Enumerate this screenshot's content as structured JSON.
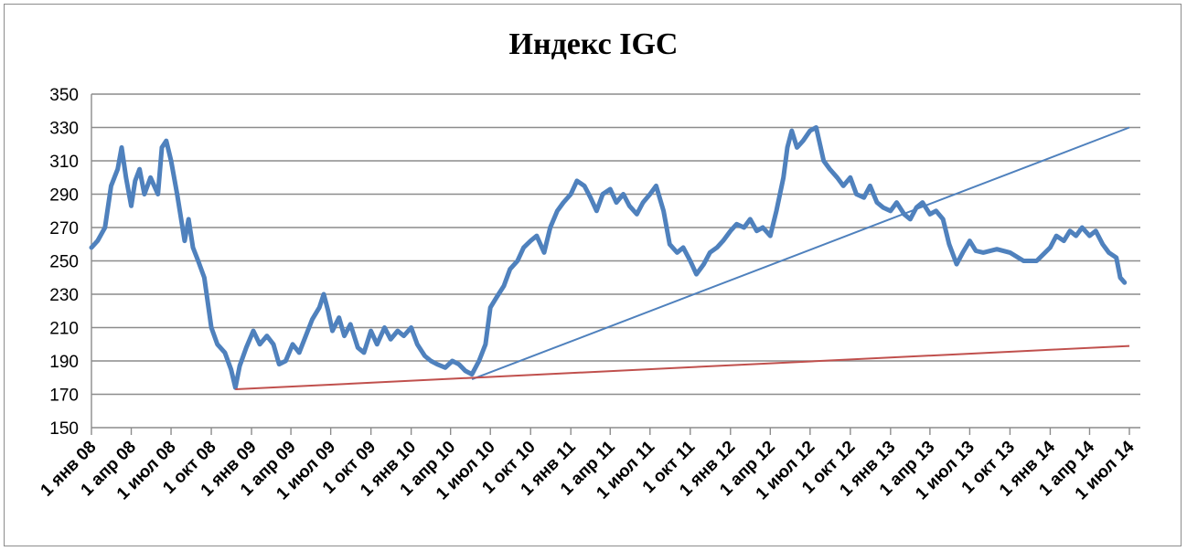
{
  "chart_data": {
    "type": "line",
    "title": "Индекс IGC",
    "xlabel": "",
    "ylabel": "",
    "ylim": [
      150,
      350
    ],
    "yticks": [
      150,
      170,
      190,
      210,
      230,
      250,
      270,
      290,
      310,
      330,
      350
    ],
    "grid": true,
    "legend": "none",
    "xticks": [
      "1 янв 08",
      "1 апр 08",
      "1 июл 08",
      "1 окт 08",
      "1 янв 09",
      "1 апр 09",
      "1 июл 09",
      "1 окт 09",
      "1 янв 10",
      "1 апр 10",
      "1 июл 10",
      "1 окт 10",
      "1 янв 11",
      "1 апр 11",
      "1 июл 11",
      "1 окт 11",
      "1 янв 12",
      "1 апр 12",
      "1 июл 12",
      "1 окт 12",
      "1 янв 13",
      "1 апр 13",
      "1 июл 13",
      "1 окт 13",
      "1 янв 14",
      "1 апр 14",
      "1 июл 14"
    ],
    "series": [
      {
        "type": "line",
        "color": "#4f81bd",
        "points": [
          [
            "2008-01-01",
            258
          ],
          [
            "2008-01-15",
            262
          ],
          [
            "2008-02-01",
            270
          ],
          [
            "2008-02-15",
            295
          ],
          [
            "2008-03-01",
            305
          ],
          [
            "2008-03-10",
            318
          ],
          [
            "2008-03-20",
            300
          ],
          [
            "2008-04-01",
            283
          ],
          [
            "2008-04-10",
            298
          ],
          [
            "2008-04-20",
            305
          ],
          [
            "2008-05-01",
            290
          ],
          [
            "2008-05-15",
            300
          ],
          [
            "2008-06-01",
            290
          ],
          [
            "2008-06-10",
            318
          ],
          [
            "2008-06-20",
            322
          ],
          [
            "2008-07-01",
            310
          ],
          [
            "2008-07-15",
            290
          ],
          [
            "2008-08-01",
            262
          ],
          [
            "2008-08-10",
            275
          ],
          [
            "2008-08-20",
            258
          ],
          [
            "2008-09-01",
            250
          ],
          [
            "2008-09-15",
            240
          ],
          [
            "2008-10-01",
            210
          ],
          [
            "2008-10-15",
            200
          ],
          [
            "2008-11-01",
            195
          ],
          [
            "2008-11-15",
            185
          ],
          [
            "2008-11-25",
            174
          ],
          [
            "2008-12-05",
            187
          ],
          [
            "2008-12-20",
            198
          ],
          [
            "2009-01-05",
            208
          ],
          [
            "2009-01-20",
            200
          ],
          [
            "2009-02-05",
            205
          ],
          [
            "2009-02-20",
            200
          ],
          [
            "2009-03-05",
            188
          ],
          [
            "2009-03-20",
            190
          ],
          [
            "2009-04-05",
            200
          ],
          [
            "2009-04-20",
            195
          ],
          [
            "2009-05-05",
            205
          ],
          [
            "2009-05-20",
            215
          ],
          [
            "2009-06-05",
            222
          ],
          [
            "2009-06-15",
            230
          ],
          [
            "2009-06-25",
            220
          ],
          [
            "2009-07-05",
            208
          ],
          [
            "2009-07-20",
            216
          ],
          [
            "2009-08-01",
            205
          ],
          [
            "2009-08-15",
            212
          ],
          [
            "2009-09-01",
            198
          ],
          [
            "2009-09-15",
            195
          ],
          [
            "2009-10-01",
            208
          ],
          [
            "2009-10-15",
            200
          ],
          [
            "2009-11-01",
            210
          ],
          [
            "2009-11-15",
            203
          ],
          [
            "2009-12-01",
            208
          ],
          [
            "2009-12-15",
            205
          ],
          [
            "2010-01-01",
            210
          ],
          [
            "2010-01-15",
            200
          ],
          [
            "2010-02-01",
            193
          ],
          [
            "2010-02-15",
            190
          ],
          [
            "2010-03-01",
            188
          ],
          [
            "2010-03-20",
            186
          ],
          [
            "2010-04-05",
            190
          ],
          [
            "2010-04-20",
            188
          ],
          [
            "2010-05-05",
            184
          ],
          [
            "2010-05-20",
            182
          ],
          [
            "2010-06-05",
            190
          ],
          [
            "2010-06-20",
            200
          ],
          [
            "2010-07-01",
            222
          ],
          [
            "2010-07-15",
            228
          ],
          [
            "2010-08-01",
            235
          ],
          [
            "2010-08-15",
            245
          ],
          [
            "2010-09-01",
            250
          ],
          [
            "2010-09-15",
            258
          ],
          [
            "2010-10-01",
            262
          ],
          [
            "2010-10-15",
            265
          ],
          [
            "2010-11-01",
            255
          ],
          [
            "2010-11-15",
            270
          ],
          [
            "2010-12-01",
            280
          ],
          [
            "2010-12-15",
            285
          ],
          [
            "2011-01-01",
            290
          ],
          [
            "2011-01-15",
            298
          ],
          [
            "2011-02-01",
            295
          ],
          [
            "2011-02-15",
            288
          ],
          [
            "2011-03-01",
            280
          ],
          [
            "2011-03-15",
            290
          ],
          [
            "2011-04-01",
            293
          ],
          [
            "2011-04-15",
            285
          ],
          [
            "2011-05-01",
            290
          ],
          [
            "2011-05-15",
            283
          ],
          [
            "2011-06-01",
            278
          ],
          [
            "2011-06-15",
            285
          ],
          [
            "2011-07-01",
            290
          ],
          [
            "2011-07-15",
            295
          ],
          [
            "2011-08-01",
            280
          ],
          [
            "2011-08-15",
            260
          ],
          [
            "2011-09-01",
            255
          ],
          [
            "2011-09-15",
            258
          ],
          [
            "2011-10-01",
            250
          ],
          [
            "2011-10-15",
            242
          ],
          [
            "2011-11-01",
            248
          ],
          [
            "2011-11-15",
            255
          ],
          [
            "2011-12-01",
            258
          ],
          [
            "2011-12-15",
            262
          ],
          [
            "2012-01-01",
            268
          ],
          [
            "2012-01-15",
            272
          ],
          [
            "2012-02-01",
            270
          ],
          [
            "2012-02-15",
            275
          ],
          [
            "2012-03-01",
            268
          ],
          [
            "2012-03-15",
            270
          ],
          [
            "2012-04-01",
            265
          ],
          [
            "2012-04-15",
            280
          ],
          [
            "2012-05-01",
            300
          ],
          [
            "2012-05-10",
            318
          ],
          [
            "2012-05-20",
            328
          ],
          [
            "2012-06-01",
            318
          ],
          [
            "2012-06-15",
            322
          ],
          [
            "2012-07-01",
            328
          ],
          [
            "2012-07-15",
            330
          ],
          [
            "2012-08-01",
            310
          ],
          [
            "2012-08-15",
            305
          ],
          [
            "2012-09-01",
            300
          ],
          [
            "2012-09-15",
            295
          ],
          [
            "2012-10-01",
            300
          ],
          [
            "2012-10-15",
            290
          ],
          [
            "2012-11-01",
            288
          ],
          [
            "2012-11-15",
            295
          ],
          [
            "2012-12-01",
            285
          ],
          [
            "2012-12-15",
            282
          ],
          [
            "2013-01-01",
            280
          ],
          [
            "2013-01-15",
            285
          ],
          [
            "2013-02-01",
            278
          ],
          [
            "2013-02-15",
            275
          ],
          [
            "2013-03-01",
            282
          ],
          [
            "2013-03-15",
            285
          ],
          [
            "2013-04-01",
            278
          ],
          [
            "2013-04-15",
            280
          ],
          [
            "2013-05-01",
            275
          ],
          [
            "2013-05-15",
            260
          ],
          [
            "2013-06-01",
            248
          ],
          [
            "2013-06-15",
            255
          ],
          [
            "2013-07-01",
            262
          ],
          [
            "2013-07-15",
            256
          ],
          [
            "2013-08-01",
            255
          ],
          [
            "2013-09-01",
            257
          ],
          [
            "2013-10-01",
            255
          ],
          [
            "2013-11-01",
            250
          ],
          [
            "2013-12-01",
            250
          ],
          [
            "2014-01-01",
            258
          ],
          [
            "2014-01-15",
            265
          ],
          [
            "2014-02-01",
            262
          ],
          [
            "2014-02-15",
            268
          ],
          [
            "2014-03-01",
            265
          ],
          [
            "2014-03-15",
            270
          ],
          [
            "2014-04-01",
            265
          ],
          [
            "2014-04-15",
            268
          ],
          [
            "2014-05-01",
            260
          ],
          [
            "2014-05-15",
            255
          ],
          [
            "2014-06-01",
            252
          ],
          [
            "2014-06-10",
            240
          ],
          [
            "2014-06-20",
            237
          ]
        ]
      },
      {
        "type": "trendline",
        "color": "#4f81bd",
        "points": [
          [
            "2010-05-20",
            179
          ],
          [
            "2014-07-01",
            330
          ]
        ]
      },
      {
        "type": "trendline",
        "color": "#c0504d",
        "points": [
          [
            "2008-11-25",
            173
          ],
          [
            "2014-07-01",
            199
          ]
        ]
      }
    ]
  }
}
